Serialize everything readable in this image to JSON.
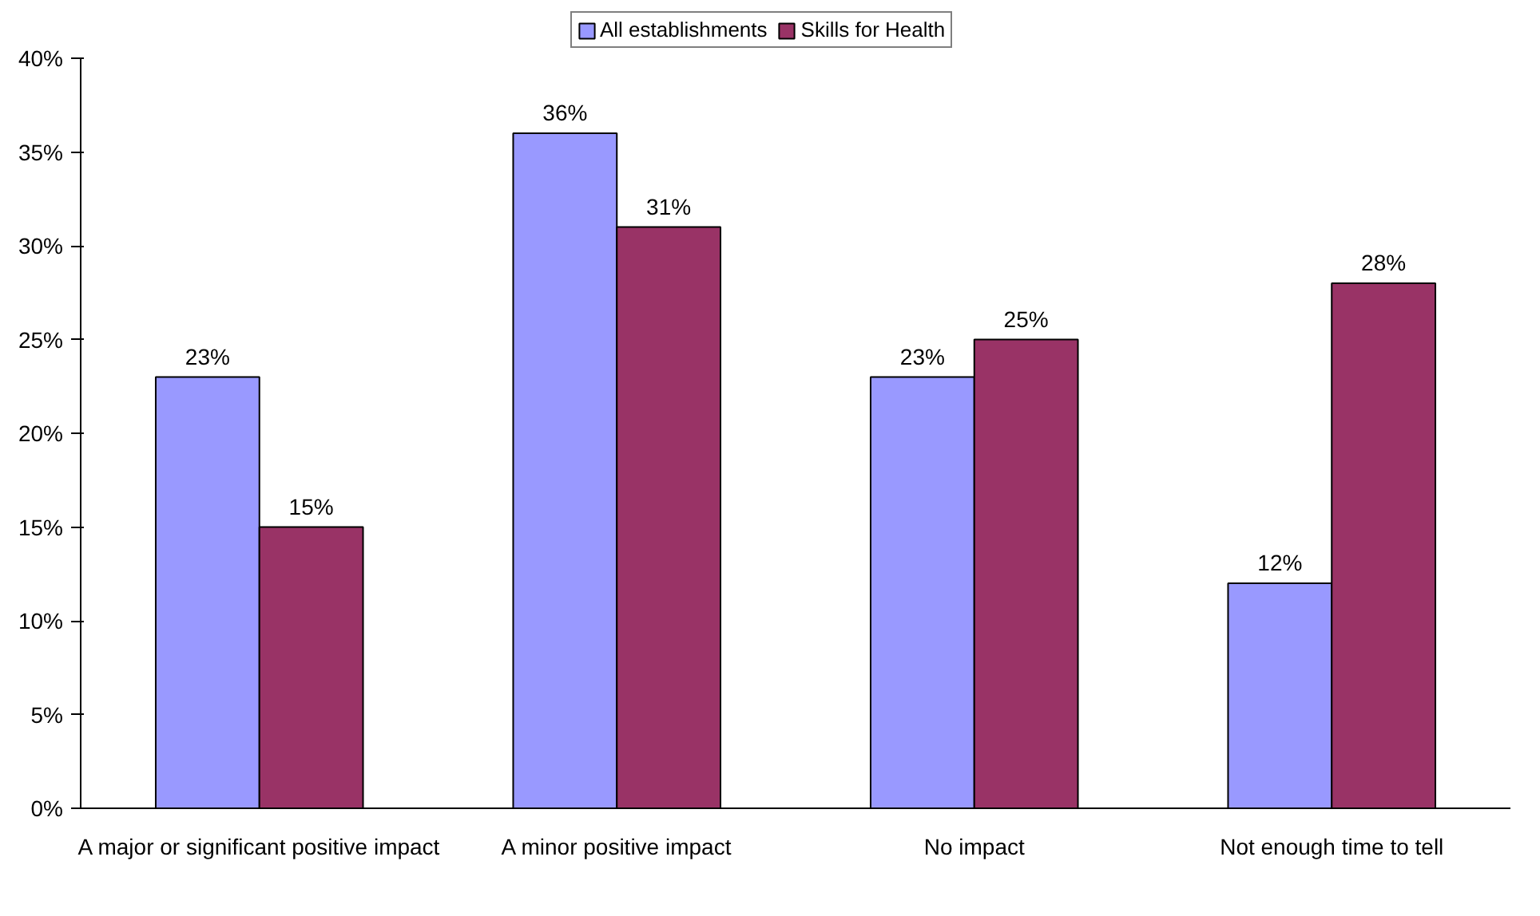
{
  "chart_data": {
    "type": "bar",
    "categories": [
      "A major or significant positive impact",
      "A minor positive impact",
      "No impact",
      "Not enough time to tell"
    ],
    "series": [
      {
        "name": "All establishments",
        "color": "#9999ff",
        "values": [
          23,
          36,
          23,
          12
        ],
        "value_labels": [
          "23%",
          "36%",
          "23%",
          "12%"
        ]
      },
      {
        "name": "Skills for Health",
        "color": "#993366",
        "values": [
          15,
          31,
          25,
          28
        ],
        "value_labels": [
          "15%",
          "31%",
          "25%",
          "28%"
        ]
      }
    ],
    "ylim": [
      0,
      40
    ],
    "yticks": [
      {
        "value": 0,
        "label": "0%"
      },
      {
        "value": 5,
        "label": "5%"
      },
      {
        "value": 10,
        "label": "10%"
      },
      {
        "value": 15,
        "label": "15%"
      },
      {
        "value": 20,
        "label": "20%"
      },
      {
        "value": 25,
        "label": "25%"
      },
      {
        "value": 30,
        "label": "30%"
      },
      {
        "value": 35,
        "label": "35%"
      },
      {
        "value": 40,
        "label": "40%"
      }
    ],
    "grid": false,
    "legend": "top"
  }
}
